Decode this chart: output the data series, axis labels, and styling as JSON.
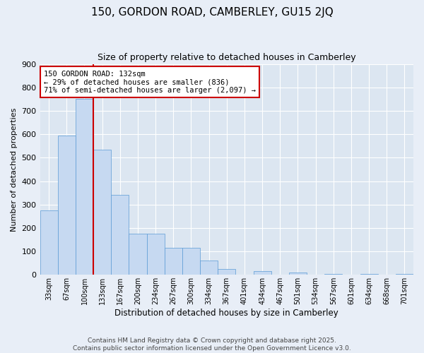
{
  "title": "150, GORDON ROAD, CAMBERLEY, GU15 2JQ",
  "subtitle": "Size of property relative to detached houses in Camberley",
  "xlabel": "Distribution of detached houses by size in Camberley",
  "ylabel": "Number of detached properties",
  "categories": [
    "33sqm",
    "67sqm",
    "100sqm",
    "133sqm",
    "167sqm",
    "200sqm",
    "234sqm",
    "267sqm",
    "300sqm",
    "334sqm",
    "367sqm",
    "401sqm",
    "434sqm",
    "467sqm",
    "501sqm",
    "534sqm",
    "567sqm",
    "601sqm",
    "634sqm",
    "668sqm",
    "701sqm"
  ],
  "values": [
    275,
    595,
    750,
    535,
    340,
    175,
    175,
    115,
    115,
    60,
    25,
    0,
    15,
    0,
    10,
    0,
    5,
    0,
    5,
    0,
    5
  ],
  "bar_color": "#c6d9f1",
  "bar_edge_color": "#5b9bd5",
  "vline_x": 2.5,
  "vline_color": "#cc0000",
  "annotation_line1": "150 GORDON ROAD: 132sqm",
  "annotation_line2": "← 29% of detached houses are smaller (836)",
  "annotation_line3": "71% of semi-detached houses are larger (2,097) →",
  "annotation_box_color": "#cc0000",
  "annotation_fontsize": 7.5,
  "ylim": [
    0,
    900
  ],
  "yticks": [
    0,
    100,
    200,
    300,
    400,
    500,
    600,
    700,
    800,
    900
  ],
  "background_color": "#e8eef7",
  "plot_background": "#dce6f1",
  "grid_color": "#ffffff",
  "footer": "Contains HM Land Registry data © Crown copyright and database right 2025.\nContains public sector information licensed under the Open Government Licence v3.0.",
  "title_fontsize": 11,
  "subtitle_fontsize": 9,
  "xlabel_fontsize": 8.5,
  "ylabel_fontsize": 8,
  "footer_fontsize": 6.5
}
